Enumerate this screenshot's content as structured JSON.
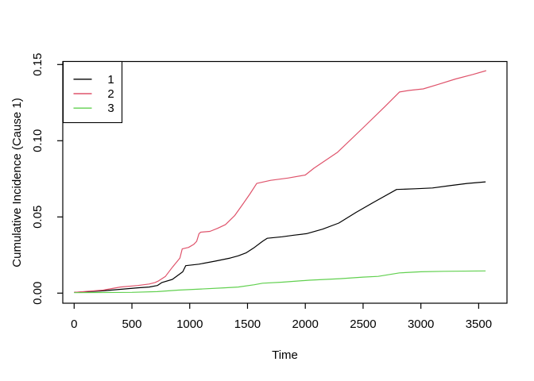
{
  "colors": {
    "background": "#FFFFFF",
    "axis": "#000000",
    "text": "#000000"
  },
  "chart_data": {
    "type": "line",
    "title": "",
    "xlabel": "Time",
    "ylabel": "Cumulative Incidence (Cause 1)",
    "xlim": [
      0,
      3600
    ],
    "ylim": [
      0,
      0.15
    ],
    "grid": false,
    "x_ticks": [
      {
        "value": 0,
        "label": "0"
      },
      {
        "value": 500,
        "label": "500"
      },
      {
        "value": 1000,
        "label": "1000"
      },
      {
        "value": 1500,
        "label": "1500"
      },
      {
        "value": 2000,
        "label": "2000"
      },
      {
        "value": 2500,
        "label": "2500"
      },
      {
        "value": 3000,
        "label": "3000"
      },
      {
        "value": 3500,
        "label": "3500"
      }
    ],
    "y_ticks": [
      {
        "value": 0.0,
        "label": "0.00"
      },
      {
        "value": 0.05,
        "label": "0.05"
      },
      {
        "value": 0.1,
        "label": "0.10"
      },
      {
        "value": 0.15,
        "label": "0.15"
      }
    ],
    "legend": {
      "position": "top-left",
      "entries": [
        "1",
        "2",
        "3"
      ]
    },
    "series": [
      {
        "name": "1",
        "color": "#000000",
        "points": [
          [
            0,
            0.0005
          ],
          [
            250,
            0.0015
          ],
          [
            400,
            0.0025
          ],
          [
            550,
            0.0035
          ],
          [
            650,
            0.004
          ],
          [
            720,
            0.005
          ],
          [
            760,
            0.007
          ],
          [
            850,
            0.009
          ],
          [
            940,
            0.014
          ],
          [
            965,
            0.018
          ],
          [
            1080,
            0.019
          ],
          [
            1220,
            0.021
          ],
          [
            1350,
            0.023
          ],
          [
            1420,
            0.0245
          ],
          [
            1490,
            0.0265
          ],
          [
            1560,
            0.03
          ],
          [
            1630,
            0.034
          ],
          [
            1670,
            0.036
          ],
          [
            1800,
            0.037
          ],
          [
            1900,
            0.038
          ],
          [
            2010,
            0.039
          ],
          [
            2150,
            0.042
          ],
          [
            2290,
            0.046
          ],
          [
            2440,
            0.053
          ],
          [
            2600,
            0.06
          ],
          [
            2790,
            0.068
          ],
          [
            2950,
            0.0685
          ],
          [
            3100,
            0.069
          ],
          [
            3250,
            0.0705
          ],
          [
            3400,
            0.072
          ],
          [
            3560,
            0.073
          ]
        ]
      },
      {
        "name": "2",
        "color": "#DF536B",
        "points": [
          [
            0,
            0.0005
          ],
          [
            250,
            0.002
          ],
          [
            400,
            0.004
          ],
          [
            550,
            0.005
          ],
          [
            650,
            0.006
          ],
          [
            700,
            0.007
          ],
          [
            730,
            0.008
          ],
          [
            790,
            0.011
          ],
          [
            850,
            0.017
          ],
          [
            915,
            0.023
          ],
          [
            935,
            0.029
          ],
          [
            990,
            0.03
          ],
          [
            1035,
            0.032
          ],
          [
            1060,
            0.034
          ],
          [
            1080,
            0.039
          ],
          [
            1095,
            0.04
          ],
          [
            1175,
            0.0405
          ],
          [
            1240,
            0.0425
          ],
          [
            1310,
            0.045
          ],
          [
            1390,
            0.051
          ],
          [
            1456,
            0.058
          ],
          [
            1520,
            0.065
          ],
          [
            1580,
            0.072
          ],
          [
            1700,
            0.074
          ],
          [
            1850,
            0.0755
          ],
          [
            2000,
            0.0775
          ],
          [
            2075,
            0.082
          ],
          [
            2280,
            0.0925
          ],
          [
            2500,
            0.1085
          ],
          [
            2690,
            0.1225
          ],
          [
            2815,
            0.132
          ],
          [
            2900,
            0.133
          ],
          [
            3020,
            0.134
          ],
          [
            3150,
            0.137
          ],
          [
            3300,
            0.1405
          ],
          [
            3450,
            0.1435
          ],
          [
            3565,
            0.146
          ]
        ]
      },
      {
        "name": "3",
        "color": "#61D04F",
        "points": [
          [
            0,
            0.0003
          ],
          [
            500,
            0.0005
          ],
          [
            720,
            0.001
          ],
          [
            900,
            0.002
          ],
          [
            1100,
            0.0027
          ],
          [
            1300,
            0.0035
          ],
          [
            1420,
            0.004
          ],
          [
            1560,
            0.0055
          ],
          [
            1630,
            0.0065
          ],
          [
            1800,
            0.0072
          ],
          [
            2035,
            0.0085
          ],
          [
            2300,
            0.0095
          ],
          [
            2500,
            0.0105
          ],
          [
            2630,
            0.011
          ],
          [
            2815,
            0.0133
          ],
          [
            3000,
            0.014
          ],
          [
            3200,
            0.0143
          ],
          [
            3560,
            0.0146
          ]
        ]
      }
    ]
  }
}
